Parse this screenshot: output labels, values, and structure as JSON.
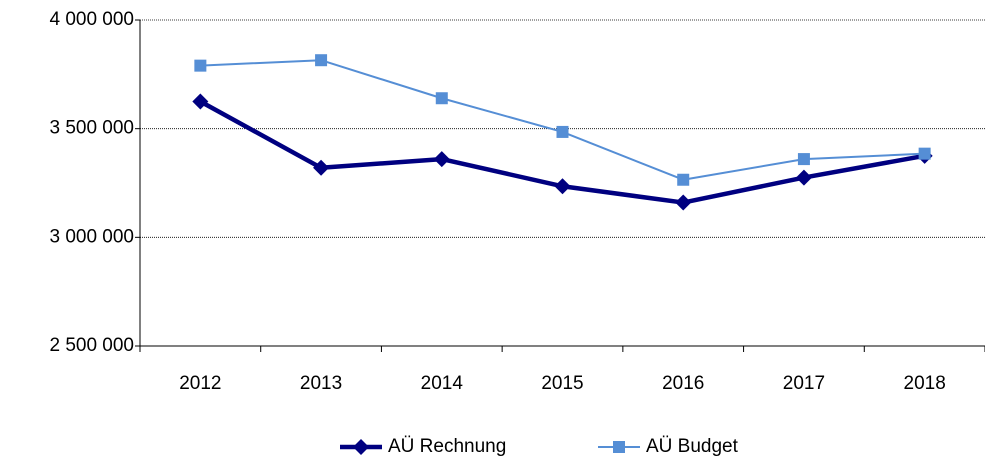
{
  "chart_data": {
    "type": "line",
    "categories": [
      "2012",
      "2013",
      "2014",
      "2015",
      "2016",
      "2017",
      "2018"
    ],
    "series": [
      {
        "name": "AÜ Rechnung",
        "color": "#000080",
        "marker": "diamond",
        "values": [
          3625000,
          3320000,
          3360000,
          3235000,
          3160000,
          3275000,
          3375000
        ]
      },
      {
        "name": "AÜ Budget",
        "color": "#558ed5",
        "marker": "square",
        "values": [
          3790000,
          3815000,
          3640000,
          3485000,
          3265000,
          3360000,
          3385000
        ]
      }
    ],
    "ylim": [
      2500000,
      4000000
    ],
    "yticks": [
      {
        "value": 2500000,
        "label": "2 500 000"
      },
      {
        "value": 3000000,
        "label": "3 000 000"
      },
      {
        "value": 3500000,
        "label": "3 500 000"
      },
      {
        "value": 4000000,
        "label": "4 000 000"
      }
    ],
    "grid": true,
    "legend": "bottom"
  }
}
